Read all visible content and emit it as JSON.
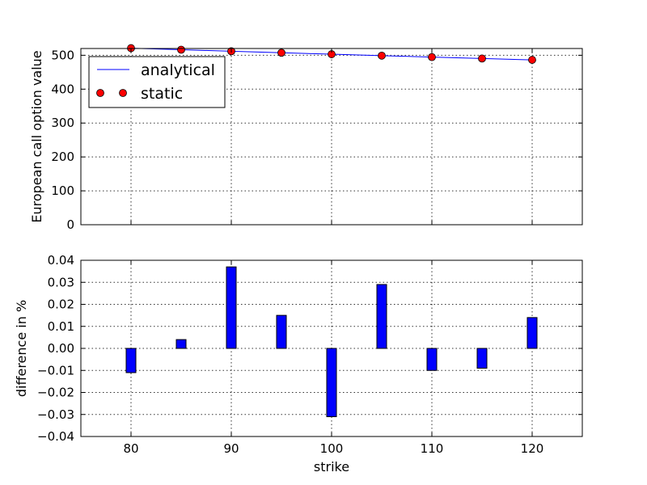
{
  "chart_data": [
    {
      "type": "line",
      "title": "",
      "xlabel": "",
      "ylabel": "European call option value",
      "xlim": [
        75,
        125
      ],
      "ylim": [
        0,
        520
      ],
      "yticks": [
        "0",
        "100",
        "200",
        "300",
        "400",
        "500"
      ],
      "grid": true,
      "legend_position": "top-left",
      "x": [
        80,
        85,
        90,
        95,
        100,
        105,
        110,
        115,
        120
      ],
      "series": [
        {
          "name": "analytical",
          "style": "line",
          "color": "#0000ff",
          "values": [
            521.0,
            516.4,
            511.9,
            507.5,
            503.2,
            498.9,
            494.7,
            490.5,
            486.4
          ]
        },
        {
          "name": "static",
          "style": "markers",
          "color": "#ff0000",
          "values": [
            521.0,
            516.4,
            511.9,
            507.5,
            503.2,
            498.9,
            494.7,
            490.5,
            486.4
          ]
        }
      ]
    },
    {
      "type": "bar",
      "title": "",
      "xlabel": "strike",
      "ylabel": "difference in %",
      "xlim": [
        75,
        125
      ],
      "ylim": [
        -0.04,
        0.04
      ],
      "xticks": [
        "80",
        "90",
        "100",
        "110",
        "120"
      ],
      "yticks": [
        "−0.04",
        "−0.03",
        "−0.02",
        "−0.01",
        "0.00",
        "0.01",
        "0.02",
        "0.03",
        "0.04"
      ],
      "grid": true,
      "bar_color": "#0000ff",
      "x": [
        80,
        85,
        90,
        95,
        100,
        105,
        110,
        115,
        120
      ],
      "values": [
        -0.011,
        0.004,
        0.037,
        0.015,
        -0.031,
        0.029,
        -0.01,
        -0.009,
        0.014
      ]
    }
  ]
}
